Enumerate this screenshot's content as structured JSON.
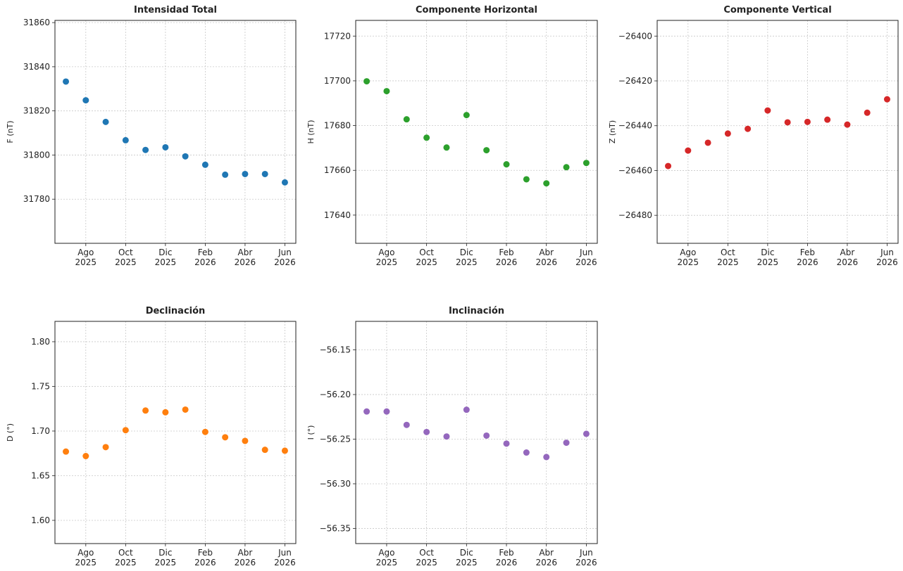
{
  "chart_data": [
    {
      "type": "scatter",
      "title": "Intensidad Total",
      "y_label": "F (nT)",
      "color": "#1f77b4",
      "grid": true,
      "x": [
        "2025-07",
        "2025-08",
        "2025-09",
        "2025-10",
        "2025-11",
        "2025-12",
        "2026-01",
        "2026-02",
        "2026-03",
        "2026-04",
        "2026-05",
        "2026-06"
      ],
      "values": [
        31833.3,
        31824.8,
        31815,
        31806.7,
        31802.3,
        31803.5,
        31799.4,
        31795.6,
        31791.1,
        31791.4,
        31791.4,
        31787.6
      ],
      "ylim": [
        31760,
        31861
      ],
      "yticks": [
        31780,
        31800,
        31820,
        31840,
        31860
      ],
      "xticks": [
        {
          "value": "2025-08",
          "label": [
            "Ago",
            "2025"
          ]
        },
        {
          "value": "2025-10",
          "label": [
            "Oct",
            "2025"
          ]
        },
        {
          "value": "2025-12",
          "label": [
            "Dic",
            "2025"
          ]
        },
        {
          "value": "2026-02",
          "label": [
            "Feb",
            "2026"
          ]
        },
        {
          "value": "2026-04",
          "label": [
            "Abr",
            "2026"
          ]
        },
        {
          "value": "2026-06",
          "label": [
            "Jun",
            "2026"
          ]
        }
      ]
    },
    {
      "type": "scatter",
      "title": "Componente Horizontal",
      "y_label": "H (nT)",
      "color": "#2ca02c",
      "grid": true,
      "x": [
        "2025-07",
        "2025-08",
        "2025-09",
        "2025-10",
        "2025-11",
        "2025-12",
        "2026-01",
        "2026-02",
        "2026-03",
        "2026-04",
        "2026-05",
        "2026-06"
      ],
      "values": [
        17699.8,
        17695.4,
        17682.8,
        17674.6,
        17670.2,
        17684.7,
        17669,
        17662.7,
        17656,
        17654.2,
        17661.4,
        17663.3
      ],
      "ylim": [
        17627.4,
        17727
      ],
      "yticks": [
        17640,
        17660,
        17680,
        17700,
        17720
      ],
      "xticks": [
        {
          "value": "2025-08",
          "label": [
            "Ago",
            "2025"
          ]
        },
        {
          "value": "2025-10",
          "label": [
            "Oct",
            "2025"
          ]
        },
        {
          "value": "2025-12",
          "label": [
            "Dic",
            "2025"
          ]
        },
        {
          "value": "2026-02",
          "label": [
            "Feb",
            "2026"
          ]
        },
        {
          "value": "2026-04",
          "label": [
            "Abr",
            "2026"
          ]
        },
        {
          "value": "2026-06",
          "label": [
            "Jun",
            "2026"
          ]
        }
      ]
    },
    {
      "type": "scatter",
      "title": "Componente Vertical",
      "y_label": "Z (nT)",
      "color": "#d62728",
      "grid": true,
      "x": [
        "2025-07",
        "2025-08",
        "2025-09",
        "2025-10",
        "2025-11",
        "2025-12",
        "2026-01",
        "2026-02",
        "2026-03",
        "2026-04",
        "2026-05",
        "2026-06"
      ],
      "values": [
        -26458,
        -26451.1,
        -26447.6,
        -26443.5,
        -26441.4,
        -26433.2,
        -26438.5,
        -26438.3,
        -26437.3,
        -26439.5,
        -26434.2,
        -26428.2
      ],
      "ylim": [
        -26492.5,
        -26393
      ],
      "yticks": [
        {
          "value": -26480,
          "label": "−26480"
        },
        {
          "value": -26460,
          "label": "−26460"
        },
        {
          "value": -26440,
          "label": "−26440"
        },
        {
          "value": -26420,
          "label": "−26420"
        },
        {
          "value": -26400,
          "label": "−26400"
        }
      ],
      "xticks": [
        {
          "value": "2025-08",
          "label": [
            "Ago",
            "2025"
          ]
        },
        {
          "value": "2025-10",
          "label": [
            "Oct",
            "2025"
          ]
        },
        {
          "value": "2025-12",
          "label": [
            "Dic",
            "2025"
          ]
        },
        {
          "value": "2026-02",
          "label": [
            "Feb",
            "2026"
          ]
        },
        {
          "value": "2026-04",
          "label": [
            "Abr",
            "2026"
          ]
        },
        {
          "value": "2026-06",
          "label": [
            "Jun",
            "2026"
          ]
        }
      ]
    },
    {
      "type": "scatter",
      "title": "Declinación",
      "y_label": "D (°)",
      "color": "#ff7f0e",
      "grid": true,
      "x": [
        "2025-07",
        "2025-08",
        "2025-09",
        "2025-10",
        "2025-11",
        "2025-12",
        "2026-01",
        "2026-02",
        "2026-03",
        "2026-04",
        "2026-05",
        "2026-06"
      ],
      "values": [
        1.677,
        1.672,
        1.682,
        1.701,
        1.723,
        1.721,
        1.724,
        1.699,
        1.693,
        1.689,
        1.679,
        1.678
      ],
      "ylim": [
        1.574,
        1.8228
      ],
      "yticks": [
        {
          "value": 1.6,
          "label": "1.60"
        },
        1.65,
        {
          "value": 1.7,
          "label": "1.70"
        },
        1.75,
        {
          "value": 1.8,
          "label": "1.80"
        }
      ],
      "xticks": [
        {
          "value": "2025-08",
          "label": [
            "Ago",
            "2025"
          ]
        },
        {
          "value": "2025-10",
          "label": [
            "Oct",
            "2025"
          ]
        },
        {
          "value": "2025-12",
          "label": [
            "Dic",
            "2025"
          ]
        },
        {
          "value": "2026-02",
          "label": [
            "Feb",
            "2026"
          ]
        },
        {
          "value": "2026-04",
          "label": [
            "Abr",
            "2026"
          ]
        },
        {
          "value": "2026-06",
          "label": [
            "Jun",
            "2026"
          ]
        }
      ]
    },
    {
      "type": "scatter",
      "title": "Inclinación",
      "y_label": "I (°)",
      "color": "#9467bd",
      "grid": true,
      "x": [
        "2025-07",
        "2025-08",
        "2025-09",
        "2025-10",
        "2025-11",
        "2025-12",
        "2026-01",
        "2026-02",
        "2026-03",
        "2026-04",
        "2026-05",
        "2026-06"
      ],
      "values": [
        -56.219,
        -56.219,
        -56.234,
        -56.242,
        -56.247,
        -56.217,
        -56.246,
        -56.255,
        -56.265,
        -56.27,
        -56.254,
        -56.244
      ],
      "ylim": [
        -56.367,
        -56.118
      ],
      "yticks": [
        {
          "value": -56.35,
          "label": "−56.35"
        },
        {
          "value": -56.3,
          "label": "−56.30"
        },
        {
          "value": -56.25,
          "label": "−56.25"
        },
        {
          "value": -56.2,
          "label": "−56.20"
        },
        {
          "value": -56.15,
          "label": "−56.15"
        }
      ],
      "xticks": [
        {
          "value": "2025-08",
          "label": [
            "Ago",
            "2025"
          ]
        },
        {
          "value": "2025-10",
          "label": [
            "Oct",
            "2025"
          ]
        },
        {
          "value": "2025-12",
          "label": [
            "Dic",
            "2025"
          ]
        },
        {
          "value": "2026-02",
          "label": [
            "Feb",
            "2026"
          ]
        },
        {
          "value": "2026-04",
          "label": [
            "Abr",
            "2026"
          ]
        },
        {
          "value": "2026-06",
          "label": [
            "Jun",
            "2026"
          ]
        }
      ]
    }
  ]
}
